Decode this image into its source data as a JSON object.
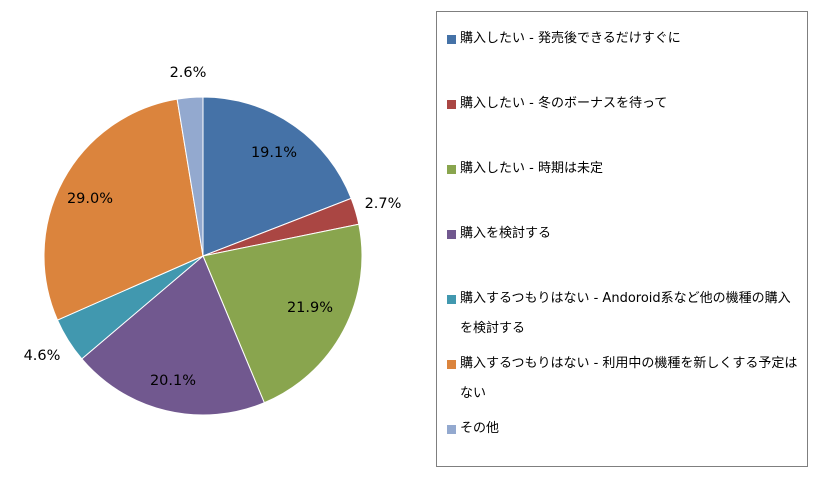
{
  "chart_data": {
    "type": "pie",
    "start": "12 o'clock, clockwise",
    "slices": [
      {
        "label": "購入したい - 発売後できるだけすぐに",
        "value": 19.1,
        "value_label": "19.1%",
        "color": "#4572a7"
      },
      {
        "label": "購入したい - 冬のボーナスを待って",
        "value": 2.7,
        "value_label": "2.7%",
        "color": "#aa4643"
      },
      {
        "label": "購入したい - 時期は未定",
        "value": 21.9,
        "value_label": "21.9%",
        "color": "#89a54e"
      },
      {
        "label": "購入を検討する",
        "value": 20.1,
        "value_label": "20.1%",
        "color": "#71588f"
      },
      {
        "label": "購入するつもりはない - Andoroid系など他の機種の購入を検討する",
        "value": 4.6,
        "value_label": "4.6%",
        "color": "#4198af"
      },
      {
        "label": "購入するつもりはない - 利用中の機種を新しくする予定はない",
        "value": 29.0,
        "value_label": "29.0%",
        "color": "#db843d"
      },
      {
        "label": "その他",
        "value": 2.6,
        "value_label": "2.6%",
        "color": "#93a9cf"
      }
    ],
    "legend_position": "right"
  }
}
